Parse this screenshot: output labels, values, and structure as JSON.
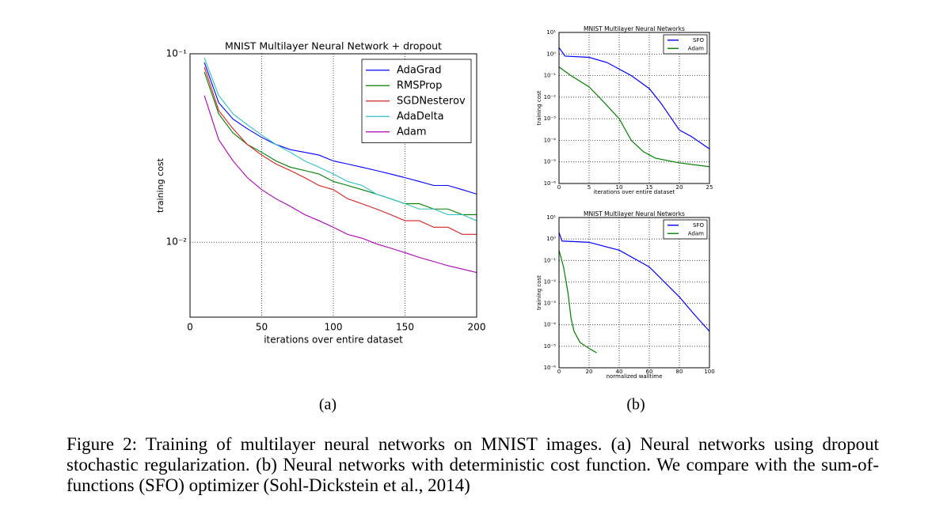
{
  "chart_data": [
    {
      "type": "line",
      "title": "MNIST Multilayer Neural Network + dropout",
      "xlabel": "iterations over entire dataset",
      "ylabel": "training cost",
      "x": [
        10,
        20,
        30,
        40,
        50,
        60,
        70,
        80,
        90,
        100,
        110,
        120,
        130,
        140,
        150,
        160,
        170,
        180,
        190,
        200
      ],
      "series": [
        {
          "name": "AdaGrad",
          "color": "#0000ff",
          "values": [
            0.09,
            0.055,
            0.045,
            0.04,
            0.036,
            0.033,
            0.031,
            0.03,
            0.029,
            0.027,
            0.026,
            0.025,
            0.024,
            0.023,
            0.022,
            0.021,
            0.02,
            0.02,
            0.019,
            0.018
          ]
        },
        {
          "name": "RMSProp",
          "color": "#008000",
          "values": [
            0.08,
            0.048,
            0.038,
            0.033,
            0.03,
            0.027,
            0.025,
            0.024,
            0.023,
            0.021,
            0.02,
            0.019,
            0.018,
            0.017,
            0.016,
            0.016,
            0.015,
            0.015,
            0.014,
            0.014
          ]
        },
        {
          "name": "SGDNesterov",
          "color": "#d62020",
          "values": [
            0.085,
            0.05,
            0.04,
            0.033,
            0.029,
            0.026,
            0.024,
            0.022,
            0.02,
            0.019,
            0.017,
            0.016,
            0.015,
            0.014,
            0.013,
            0.013,
            0.012,
            0.012,
            0.011,
            0.011
          ]
        },
        {
          "name": "AdaDelta",
          "color": "#30c0c8",
          "values": [
            0.095,
            0.06,
            0.048,
            0.042,
            0.037,
            0.033,
            0.03,
            0.027,
            0.025,
            0.023,
            0.021,
            0.02,
            0.018,
            0.017,
            0.016,
            0.015,
            0.015,
            0.014,
            0.014,
            0.013
          ]
        },
        {
          "name": "Adam",
          "color": "#b000b8",
          "values": [
            0.06,
            0.035,
            0.027,
            0.022,
            0.019,
            0.017,
            0.0155,
            0.014,
            0.013,
            0.012,
            0.011,
            0.0105,
            0.0098,
            0.0093,
            0.0088,
            0.0083,
            0.0079,
            0.0075,
            0.0072,
            0.0069
          ]
        }
      ],
      "xlim": [
        0,
        200
      ],
      "xticks": [
        0,
        50,
        100,
        150,
        200
      ],
      "ylim": [
        0.004,
        0.1
      ],
      "yticks": [
        {
          "value": 0.1,
          "label": "10⁻¹"
        },
        {
          "value": 0.01,
          "label": "10⁻²"
        }
      ],
      "log_y": true,
      "grid": true,
      "legend": "upper right"
    },
    {
      "type": "line",
      "title": "MNIST Multilayer Neural Networks",
      "xlabel": "iterations over entire dataset",
      "ylabel": "training cost",
      "series": [
        {
          "name": "SFO",
          "color": "#0000ff",
          "x": [
            0,
            1,
            5,
            8,
            10,
            12,
            15,
            17,
            20,
            22,
            25
          ],
          "values": [
            2,
            0.8,
            0.7,
            0.4,
            0.2,
            0.1,
            0.025,
            0.005,
            0.0003,
            0.00015,
            4e-05
          ]
        },
        {
          "name": "Adam",
          "color": "#008000",
          "x": [
            0,
            2,
            5,
            7,
            10,
            12,
            14,
            16,
            20,
            25
          ],
          "values": [
            0.25,
            0.1,
            0.03,
            0.008,
            0.001,
            0.0001,
            3e-05,
            1.5e-05,
            9e-06,
            6e-06
          ]
        }
      ],
      "xlim": [
        0,
        25
      ],
      "xticks": [
        0,
        5,
        10,
        15,
        20,
        25
      ],
      "ylim": [
        1e-06,
        10
      ],
      "yticks": [
        {
          "value": 10,
          "label": "10¹"
        },
        {
          "value": 1,
          "label": "10⁰"
        },
        {
          "value": 0.1,
          "label": "10⁻¹"
        },
        {
          "value": 0.01,
          "label": "10⁻²"
        },
        {
          "value": 0.001,
          "label": "10⁻³"
        },
        {
          "value": 0.0001,
          "label": "10⁻⁴"
        },
        {
          "value": 1e-05,
          "label": "10⁻⁵"
        },
        {
          "value": 1e-06,
          "label": "10⁻⁶"
        }
      ],
      "log_y": true,
      "grid": true,
      "legend": "upper right"
    },
    {
      "type": "line",
      "title": "MNIST Multilayer Neural Networks",
      "xlabel": "normalized walltime",
      "ylabel": "training cost",
      "series": [
        {
          "name": "SFO",
          "color": "#0000ff",
          "x": [
            0,
            2,
            20,
            40,
            60,
            80,
            90,
            100
          ],
          "values": [
            2,
            0.8,
            0.7,
            0.3,
            0.05,
            0.002,
            0.0003,
            5e-05
          ]
        },
        {
          "name": "Adam",
          "color": "#008000",
          "x": [
            0,
            3,
            6,
            8,
            10,
            14,
            20,
            25
          ],
          "values": [
            0.3,
            0.05,
            0.003,
            0.0002,
            5e-05,
            1.5e-05,
            8e-06,
            5e-06
          ]
        }
      ],
      "xlim": [
        0,
        100
      ],
      "xticks": [
        0,
        20,
        40,
        60,
        80,
        100
      ],
      "ylim": [
        1e-06,
        10
      ],
      "yticks": [
        {
          "value": 10,
          "label": "10¹"
        },
        {
          "value": 1,
          "label": "10⁰"
        },
        {
          "value": 0.1,
          "label": "10⁻¹"
        },
        {
          "value": 0.01,
          "label": "10⁻²"
        },
        {
          "value": 0.001,
          "label": "10⁻³"
        },
        {
          "value": 0.0001,
          "label": "10⁻⁴"
        },
        {
          "value": 1e-05,
          "label": "10⁻⁵"
        },
        {
          "value": 1e-06,
          "label": "10⁻⁶"
        }
      ],
      "log_y": true,
      "grid": true,
      "legend": "upper right"
    }
  ],
  "subfigure_labels": [
    "(a)",
    "(b)"
  ],
  "caption": "Figure 2: Training of multilayer neural networks on MNIST images. (a) Neural networks using dropout stochastic regularization. (b) Neural networks with deterministic cost function. We compare with the sum-of-functions (SFO) optimizer (Sohl-Dickstein et al., 2014)"
}
